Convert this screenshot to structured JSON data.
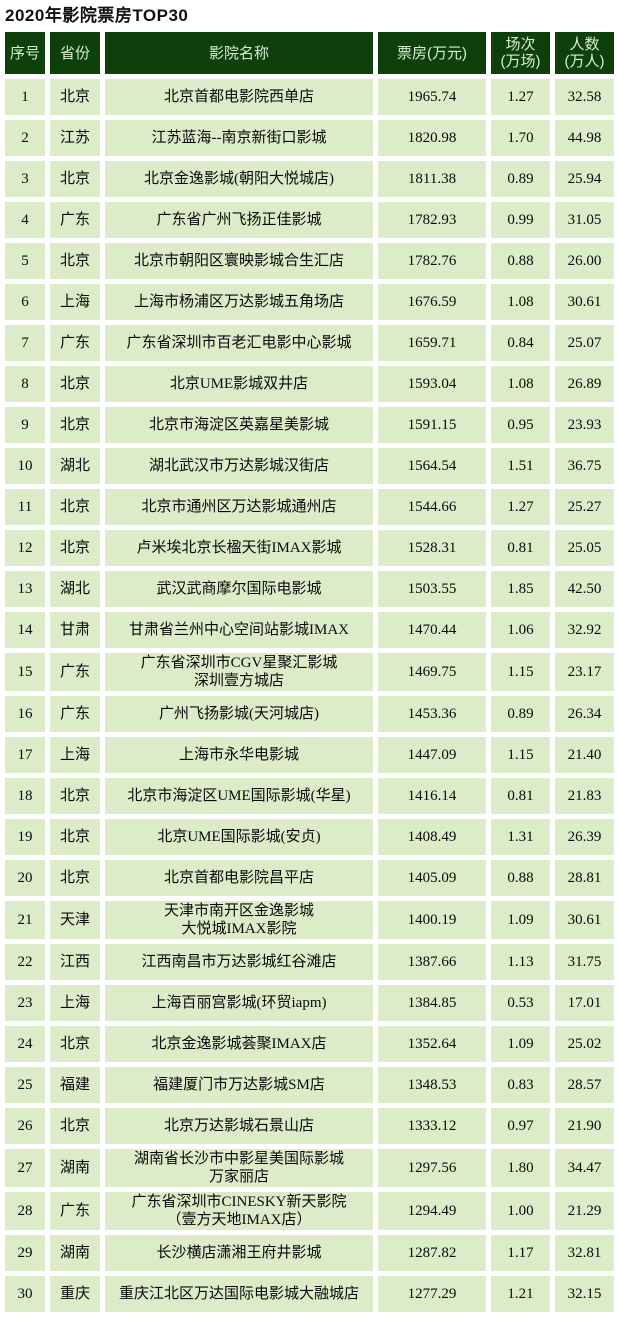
{
  "title": "2020年影院票房TOP30",
  "colors": {
    "header_bg": "#0E400C",
    "header_text": "#D7EED3",
    "row_bg": "#DCEBC8",
    "page_bg": "#FFFFFF",
    "body_text": "#000000"
  },
  "chart_data": {
    "type": "table",
    "title": "2020年影院票房TOP30",
    "columns": [
      "序号",
      "省份",
      "影院名称",
      "票房(万元)",
      "场次(万场)",
      "人数(万人)"
    ],
    "header_lines": [
      "序号",
      "省份",
      "影院名称",
      "票房(万元)",
      "场次\n(万场)",
      "人数\n(万人)"
    ],
    "rows": [
      [
        "1",
        "北京",
        "北京首都电影院西单店",
        "1965.74",
        "1.27",
        "32.58"
      ],
      [
        "2",
        "江苏",
        "江苏蓝海--南京新街口影城",
        "1820.98",
        "1.70",
        "44.98"
      ],
      [
        "3",
        "北京",
        "北京金逸影城(朝阳大悦城店)",
        "1811.38",
        "0.89",
        "25.94"
      ],
      [
        "4",
        "广东",
        "广东省广州飞扬正佳影城",
        "1782.93",
        "0.99",
        "31.05"
      ],
      [
        "5",
        "北京",
        "北京市朝阳区寰映影城合生汇店",
        "1782.76",
        "0.88",
        "26.00"
      ],
      [
        "6",
        "上海",
        "上海市杨浦区万达影城五角场店",
        "1676.59",
        "1.08",
        "30.61"
      ],
      [
        "7",
        "广东",
        "广东省深圳市百老汇电影中心影城",
        "1659.71",
        "0.84",
        "25.07"
      ],
      [
        "8",
        "北京",
        "北京UME影城双井店",
        "1593.04",
        "1.08",
        "26.89"
      ],
      [
        "9",
        "北京",
        "北京市海淀区英嘉星美影城",
        "1591.15",
        "0.95",
        "23.93"
      ],
      [
        "10",
        "湖北",
        "湖北武汉市万达影城汉街店",
        "1564.54",
        "1.51",
        "36.75"
      ],
      [
        "11",
        "北京",
        "北京市通州区万达影城通州店",
        "1544.66",
        "1.27",
        "25.27"
      ],
      [
        "12",
        "北京",
        "卢米埃北京长楹天街IMAX影城",
        "1528.31",
        "0.81",
        "25.05"
      ],
      [
        "13",
        "湖北",
        "武汉武商摩尔国际电影城",
        "1503.55",
        "1.85",
        "42.50"
      ],
      [
        "14",
        "甘肃",
        "甘肃省兰州中心空间站影城IMAX",
        "1470.44",
        "1.06",
        "32.92"
      ],
      [
        "15",
        "广东",
        "广东省深圳市CGV星聚汇影城\n深圳壹方城店",
        "1469.75",
        "1.15",
        "23.17"
      ],
      [
        "16",
        "广东",
        "广州飞扬影城(天河城店)",
        "1453.36",
        "0.89",
        "26.34"
      ],
      [
        "17",
        "上海",
        "上海市永华电影城",
        "1447.09",
        "1.15",
        "21.40"
      ],
      [
        "18",
        "北京",
        "北京市海淀区UME国际影城(华星)",
        "1416.14",
        "0.81",
        "21.83"
      ],
      [
        "19",
        "北京",
        "北京UME国际影城(安贞)",
        "1408.49",
        "1.31",
        "26.39"
      ],
      [
        "20",
        "北京",
        "北京首都电影院昌平店",
        "1405.09",
        "0.88",
        "28.81"
      ],
      [
        "21",
        "天津",
        "天津市南开区金逸影城\n大悦城IMAX影院",
        "1400.19",
        "1.09",
        "30.61"
      ],
      [
        "22",
        "江西",
        "江西南昌市万达影城红谷滩店",
        "1387.66",
        "1.13",
        "31.75"
      ],
      [
        "23",
        "上海",
        "上海百丽宫影城(环贸iapm)",
        "1384.85",
        "0.53",
        "17.01"
      ],
      [
        "24",
        "北京",
        "北京金逸影城荟聚IMAX店",
        "1352.64",
        "1.09",
        "25.02"
      ],
      [
        "25",
        "福建",
        "福建厦门市万达影城SM店",
        "1348.53",
        "0.83",
        "28.57"
      ],
      [
        "26",
        "北京",
        "北京万达影城石景山店",
        "1333.12",
        "0.97",
        "21.90"
      ],
      [
        "27",
        "湖南",
        "湖南省长沙市中影星美国际影城\n万家丽店",
        "1297.56",
        "1.80",
        "34.47"
      ],
      [
        "28",
        "广东",
        "广东省深圳市CINESKY新天影院\n（壹方天地IMAX店）",
        "1294.49",
        "1.00",
        "21.29"
      ],
      [
        "29",
        "湖南",
        "长沙横店潇湘王府井影城",
        "1287.82",
        "1.17",
        "32.81"
      ],
      [
        "30",
        "重庆",
        "重庆江北区万达国际电影城大融城店",
        "1277.29",
        "1.21",
        "32.15"
      ]
    ]
  }
}
